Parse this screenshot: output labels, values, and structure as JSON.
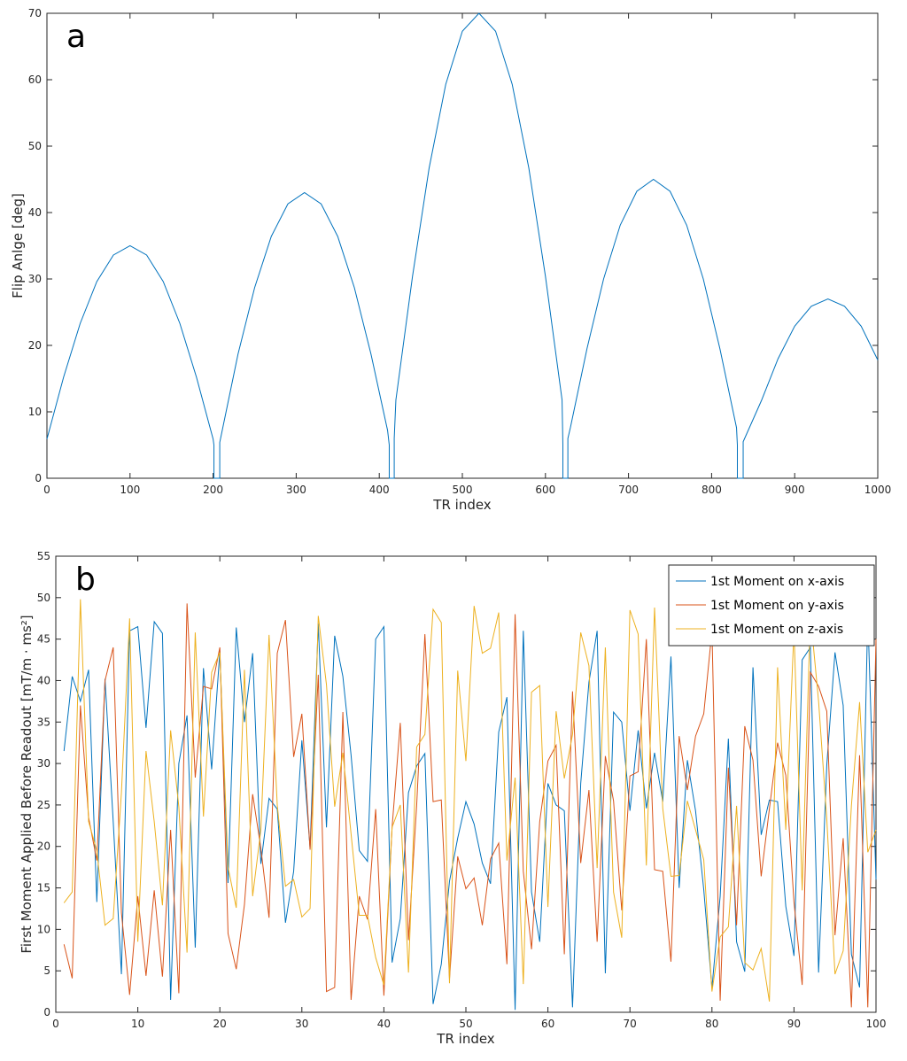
{
  "chart_data": [
    {
      "type": "line",
      "panel_label": "a",
      "xlabel": "TR index",
      "ylabel": "Flip Anlge [deg]",
      "x": [
        0,
        20,
        40,
        60,
        80,
        100,
        120,
        140,
        160,
        180,
        200,
        201,
        201,
        208,
        208,
        230,
        250,
        270,
        290,
        310,
        330,
        350,
        370,
        390,
        410,
        412,
        412,
        418,
        418,
        420,
        440,
        460,
        480,
        500,
        520,
        540,
        560,
        580,
        600,
        620,
        621,
        621,
        627,
        627,
        630,
        650,
        670,
        690,
        710,
        730,
        750,
        770,
        790,
        810,
        830,
        831,
        831,
        838,
        838,
        860,
        880,
        900,
        920,
        940,
        960,
        980,
        1000
      ],
      "values": [
        5.9,
        15.2,
        23.3,
        29.6,
        33.6,
        35,
        33.6,
        29.6,
        23.3,
        15.2,
        5.9,
        5,
        0,
        0,
        5.4,
        18.7,
        28.7,
        36.4,
        41.3,
        43,
        41.3,
        36.4,
        28.7,
        18.7,
        7.2,
        5,
        0,
        0,
        6,
        11.8,
        30.4,
        46.7,
        59.3,
        67.3,
        70,
        67.3,
        59.3,
        46.7,
        30.4,
        11.8,
        5,
        0,
        0,
        6,
        7.6,
        19.5,
        30,
        38.1,
        43.2,
        45,
        43.2,
        38.1,
        30,
        19.5,
        7.6,
        5,
        0,
        0,
        5.5,
        11.7,
        18,
        22.9,
        25.9,
        27,
        25.9,
        22.9,
        17.8
      ],
      "color": "#0072bd",
      "xlim": [
        0,
        1000
      ],
      "xticks": [
        0,
        100,
        200,
        300,
        400,
        500,
        600,
        700,
        800,
        900,
        1000
      ],
      "ylim": [
        0,
        70
      ],
      "yticks": [
        0,
        10,
        20,
        30,
        40,
        50,
        60,
        70
      ]
    },
    {
      "type": "line",
      "panel_label": "b",
      "xlabel": "TR index",
      "ylabel": "First Moment Applied Before Readout [mT/m  · ms²]",
      "x": [
        1,
        2,
        3,
        4,
        5,
        6,
        7,
        8,
        9,
        10,
        11,
        12,
        13,
        14,
        15,
        16,
        17,
        18,
        19,
        20,
        21,
        22,
        23,
        24,
        25,
        26,
        27,
        28,
        29,
        30,
        31,
        32,
        33,
        34,
        35,
        36,
        37,
        38,
        39,
        40,
        41,
        42,
        43,
        44,
        45,
        46,
        47,
        48,
        49,
        50,
        51,
        52,
        53,
        54,
        55,
        56,
        57,
        58,
        59,
        60,
        61,
        62,
        63,
        64,
        65,
        66,
        67,
        68,
        69,
        70,
        71,
        72,
        73,
        74,
        75,
        76,
        77,
        78,
        79,
        80,
        81,
        82,
        83,
        84,
        85,
        86,
        87,
        88,
        89,
        90,
        91,
        92,
        93,
        94,
        95,
        96,
        97,
        98,
        99,
        100
      ],
      "series": [
        {
          "name": "1st Moment on x-axis",
          "color": "#0072bd",
          "values": [
            31.5,
            40.5,
            37.5,
            41.3,
            13.3,
            40.2,
            23,
            4.6,
            46,
            46.5,
            34.3,
            47.1,
            45.7,
            1.5,
            30,
            35.8,
            7.8,
            41.5,
            29.3,
            43.5,
            15.6,
            46.4,
            35,
            43.3,
            17.9,
            25.8,
            24.5,
            10.8,
            17,
            32.8,
            19.8,
            46.9,
            22.3,
            45.4,
            40.5,
            31,
            19.5,
            18.2,
            45,
            46.5,
            6,
            11.3,
            26.5,
            29.7,
            31.2,
            1,
            5.8,
            15.8,
            21,
            25.4,
            22.7,
            18,
            15.5,
            33.8,
            38,
            0.3,
            46,
            14.5,
            8.5,
            27.6,
            25,
            24.3,
            0.6,
            27.6,
            39.8,
            46,
            4.7,
            36.2,
            35,
            24.3,
            34,
            24.6,
            31.3,
            25.4,
            42.9,
            15,
            30.4,
            24.3,
            14.8,
            2.9,
            14,
            33,
            8.5,
            4.9,
            41.6,
            21.4,
            25.6,
            25.4,
            12.8,
            6.8,
            42.5,
            44,
            4.8,
            29.8,
            43.4,
            37,
            7,
            3,
            48,
            16
          ]
        },
        {
          "name": "1st Moment on y-axis",
          "color": "#d95319",
          "values": [
            8.2,
            4.1,
            37,
            23.5,
            18.3,
            40,
            44,
            12,
            2.1,
            14,
            4.4,
            14.7,
            4.3,
            22,
            2.3,
            49.3,
            28.3,
            39.3,
            39,
            44,
            9.5,
            5.2,
            13,
            26.3,
            19.8,
            11.4,
            43.3,
            47.3,
            30.8,
            36,
            19.6,
            40.7,
            2.5,
            3,
            36.2,
            1.5,
            14,
            11.2,
            24.5,
            2,
            22.3,
            34.9,
            8.7,
            25,
            45.6,
            25.4,
            25.6,
            4,
            18.8,
            14.9,
            16.2,
            10.5,
            18.5,
            20.4,
            5.8,
            48,
            17,
            7.6,
            23,
            30.3,
            32.2,
            7,
            38.7,
            18,
            26.8,
            8.5,
            30.9,
            25.5,
            12.3,
            28.5,
            29,
            45,
            17.2,
            17,
            6.1,
            33.3,
            26.8,
            33.3,
            36,
            46,
            1.4,
            29.5,
            10.5,
            34.5,
            30.4,
            16.4,
            24.5,
            32.5,
            28.6,
            13.3,
            3.3,
            41,
            39.3,
            36.3,
            9.3,
            21,
            0.6,
            31,
            0.6,
            45
          ]
        },
        {
          "name": "1st Moment on z-axis",
          "color": "#edb120",
          "values": [
            13.2,
            14.5,
            49.8,
            23,
            19.5,
            10.5,
            11.3,
            26.5,
            47.5,
            8.5,
            31.5,
            23,
            12.9,
            34,
            24.8,
            7.2,
            45.8,
            23.6,
            41,
            43.4,
            17.5,
            12.6,
            41.3,
            14,
            22,
            45.5,
            25,
            15.2,
            16,
            11.5,
            12.5,
            47.8,
            39.5,
            24.8,
            31.3,
            21.5,
            11.7,
            11.7,
            6.6,
            3.3,
            22.3,
            25,
            4.8,
            32,
            33.5,
            48.6,
            47,
            3.5,
            41.2,
            30.3,
            49,
            43.3,
            43.9,
            48.2,
            18.3,
            28.3,
            3.4,
            38.6,
            39.4,
            12.7,
            36.3,
            28.2,
            33.5,
            45.8,
            41.8,
            17.4,
            44,
            14.5,
            9,
            48.5,
            45.6,
            17.7,
            48.8,
            24.6,
            16.4,
            16.5,
            25.5,
            22,
            18.4,
            2.5,
            9.1,
            10.3,
            24.9,
            6,
            5.1,
            7.7,
            1.3,
            41.6,
            22,
            46.1,
            14.7,
            48,
            37.5,
            23.3,
            4.6,
            7.4,
            24.9,
            37.4,
            19.3,
            22
          ]
        }
      ],
      "legend": "upper right",
      "xlim": [
        0,
        100
      ],
      "xticks": [
        0,
        10,
        20,
        30,
        40,
        50,
        60,
        70,
        80,
        90,
        100
      ],
      "ylim": [
        0,
        55
      ],
      "yticks": [
        0,
        5,
        10,
        15,
        20,
        25,
        30,
        35,
        40,
        45,
        50,
        55
      ]
    }
  ]
}
